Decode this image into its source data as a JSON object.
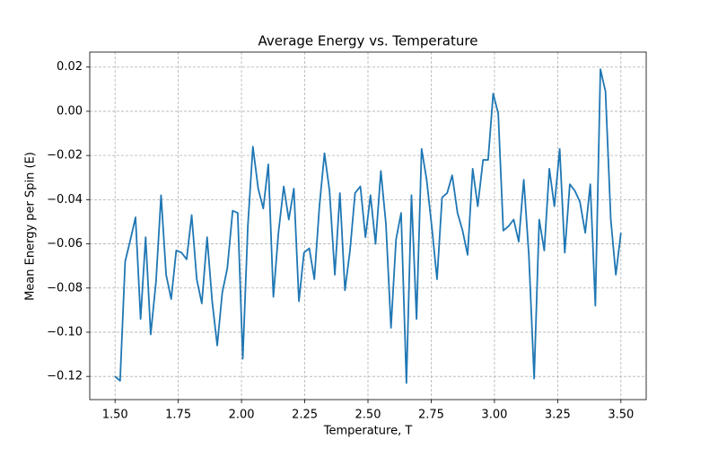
{
  "chart_data": {
    "type": "line",
    "title": "Average Energy vs. Temperature",
    "xlabel": "Temperature, T",
    "ylabel": "Mean Energy per Spin (E)",
    "x": [
      1.5,
      1.52,
      1.54,
      1.561,
      1.581,
      1.601,
      1.621,
      1.641,
      1.662,
      1.682,
      1.702,
      1.722,
      1.742,
      1.763,
      1.783,
      1.803,
      1.823,
      1.843,
      1.864,
      1.884,
      1.904,
      1.924,
      1.944,
      1.965,
      1.985,
      2.005,
      2.025,
      2.045,
      2.066,
      2.086,
      2.106,
      2.126,
      2.146,
      2.167,
      2.187,
      2.207,
      2.227,
      2.247,
      2.268,
      2.288,
      2.308,
      2.328,
      2.348,
      2.369,
      2.389,
      2.409,
      2.429,
      2.449,
      2.47,
      2.49,
      2.51,
      2.53,
      2.551,
      2.571,
      2.591,
      2.611,
      2.631,
      2.652,
      2.672,
      2.692,
      2.712,
      2.732,
      2.753,
      2.773,
      2.793,
      2.813,
      2.833,
      2.854,
      2.874,
      2.894,
      2.914,
      2.934,
      2.955,
      2.975,
      2.995,
      3.015,
      3.035,
      3.056,
      3.076,
      3.096,
      3.116,
      3.136,
      3.157,
      3.177,
      3.197,
      3.217,
      3.237,
      3.258,
      3.278,
      3.298,
      3.318,
      3.338,
      3.359,
      3.379,
      3.399,
      3.419,
      3.439,
      3.46,
      3.48,
      3.5
    ],
    "series": [
      {
        "color": "#1f77b4",
        "values": [
          -0.12,
          -0.122,
          -0.068,
          -0.058,
          -0.048,
          -0.094,
          -0.057,
          -0.101,
          -0.077,
          -0.038,
          -0.074,
          -0.085,
          -0.063,
          -0.064,
          -0.067,
          -0.047,
          -0.076,
          -0.087,
          -0.057,
          -0.086,
          -0.106,
          -0.082,
          -0.071,
          -0.045,
          -0.046,
          -0.112,
          -0.052,
          -0.016,
          -0.035,
          -0.044,
          -0.024,
          -0.084,
          -0.055,
          -0.034,
          -0.049,
          -0.035,
          -0.086,
          -0.064,
          -0.062,
          -0.076,
          -0.043,
          -0.019,
          -0.036,
          -0.074,
          -0.037,
          -0.081,
          -0.063,
          -0.037,
          -0.034,
          -0.057,
          -0.038,
          -0.06,
          -0.027,
          -0.051,
          -0.098,
          -0.058,
          -0.046,
          -0.123,
          -0.038,
          -0.094,
          -0.017,
          -0.031,
          -0.053,
          -0.076,
          -0.039,
          -0.037,
          -0.029,
          -0.046,
          -0.054,
          -0.065,
          -0.026,
          -0.043,
          -0.022,
          -0.022,
          0.008,
          -0.001,
          -0.054,
          -0.052,
          -0.049,
          -0.059,
          -0.031,
          -0.065,
          -0.121,
          -0.049,
          -0.063,
          -0.026,
          -0.043,
          -0.017,
          -0.064,
          -0.033,
          -0.036,
          -0.041,
          -0.055,
          -0.033,
          -0.088,
          0.019,
          0.009,
          -0.049,
          -0.074,
          -0.055
        ]
      }
    ],
    "xlim": [
      1.4,
      3.6
    ],
    "ylim": [
      -0.1305,
      0.0268
    ],
    "xticks": [
      {
        "value": 1.5,
        "label": "1.50"
      },
      {
        "value": 1.75,
        "label": "1.75"
      },
      {
        "value": 2.0,
        "label": "2.00"
      },
      {
        "value": 2.25,
        "label": "2.25"
      },
      {
        "value": 2.5,
        "label": "2.50"
      },
      {
        "value": 2.75,
        "label": "2.75"
      },
      {
        "value": 3.0,
        "label": "3.00"
      },
      {
        "value": 3.25,
        "label": "3.25"
      },
      {
        "value": 3.5,
        "label": "3.50"
      }
    ],
    "yticks": [
      {
        "value": -0.12,
        "label": "−0.12"
      },
      {
        "value": -0.1,
        "label": "−0.10"
      },
      {
        "value": -0.08,
        "label": "−0.08"
      },
      {
        "value": -0.06,
        "label": "−0.06"
      },
      {
        "value": -0.04,
        "label": "−0.04"
      },
      {
        "value": -0.02,
        "label": "−0.02"
      },
      {
        "value": 0,
        "label": "0.00"
      },
      {
        "value": 0.02,
        "label": "0.02"
      }
    ],
    "grid": true
  }
}
